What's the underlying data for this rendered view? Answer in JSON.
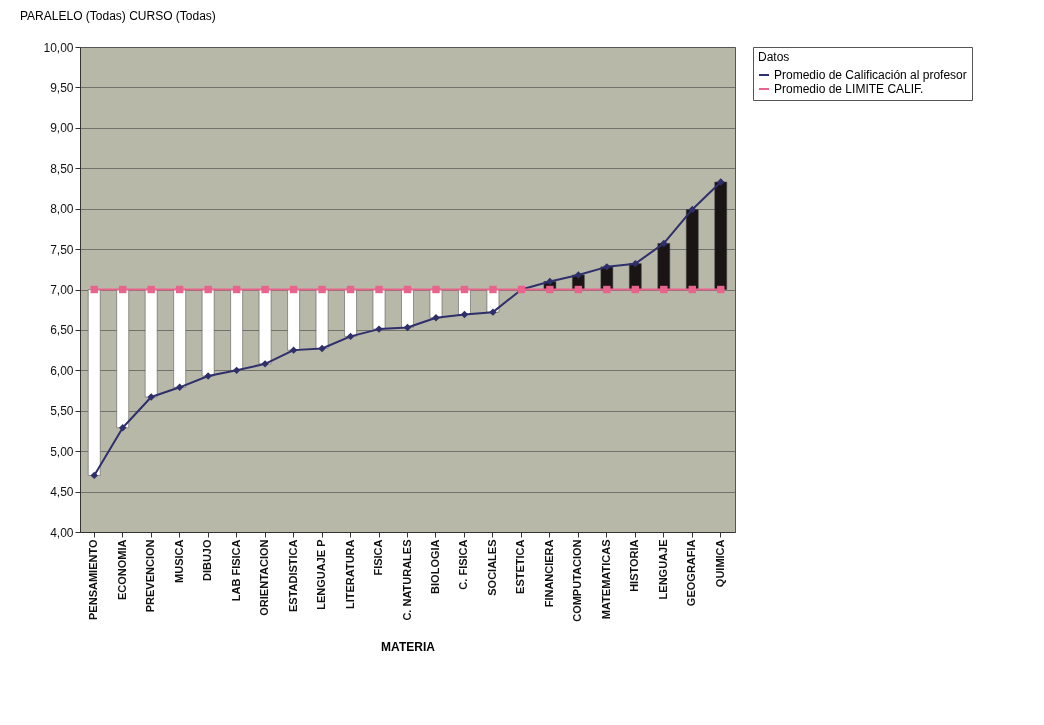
{
  "chart_data": {
    "type": "line",
    "annotations": [
      "PARALELO (Todas) CURSO (Todas)"
    ],
    "xlabel": "MATERIA",
    "legend_title": "Datos",
    "legend": "right",
    "grid": "y",
    "categories": [
      "PENSAMIENTO",
      "ECONOMIA",
      "PREVENCION",
      "MUSICA",
      "DIBUJO",
      "LAB FISICA",
      "ORIENTACION",
      "ESTADISTICA",
      "LENGUAJE P",
      "LITERATURA",
      "FISICA",
      "C. NATURALES",
      "BIOLOGIA",
      "C. FISICA",
      "SOCIALES",
      "ESTETICA",
      "FINANCIERA",
      "COMPUTACION",
      "MATEMATICAS",
      "HISTORIA",
      "LENGUAJE",
      "GEOGRAFIA",
      "QUIMICA"
    ],
    "ylim": [
      4,
      10
    ],
    "yticks": [
      {
        "value": 4,
        "label": "4,00"
      },
      {
        "value": 4.5,
        "label": "4,50"
      },
      {
        "value": 5,
        "label": "5,00"
      },
      {
        "value": 5.5,
        "label": "5,50"
      },
      {
        "value": 6,
        "label": "6,00"
      },
      {
        "value": 6.5,
        "label": "6,50"
      },
      {
        "value": 7,
        "label": "7,00"
      },
      {
        "value": 7.5,
        "label": "7,50"
      },
      {
        "value": 8,
        "label": "8,00"
      },
      {
        "value": 8.5,
        "label": "8,50"
      },
      {
        "value": 9,
        "label": "9,00"
      },
      {
        "value": 9.5,
        "label": "9,50"
      },
      {
        "value": 10,
        "label": "10,00"
      }
    ],
    "series": [
      {
        "type": "bar",
        "base": [
          7,
          7,
          7,
          7,
          7,
          7,
          7,
          7,
          7,
          7,
          7,
          7,
          7,
          7,
          7,
          null,
          7,
          7,
          7,
          7,
          7,
          7,
          7
        ],
        "values": [
          -2.3,
          -1.71,
          -1.33,
          -1.21,
          -1.07,
          -1.0,
          -0.92,
          -0.75,
          -0.73,
          -0.58,
          -0.49,
          -0.47,
          -0.35,
          -0.31,
          -0.28,
          null,
          0.1,
          0.18,
          0.28,
          0.32,
          0.57,
          0.99,
          1.33
        ],
        "colors": [
          "#ffffff",
          "#ffffff",
          "#ffffff",
          "#ffffff",
          "#ffffff",
          "#ffffff",
          "#ffffff",
          "#ffffff",
          "#ffffff",
          "#ffffff",
          "#ffffff",
          "#ffffff",
          "#ffffff",
          "#ffffff",
          "#ffffff",
          null,
          "#1a1414",
          "#1a1414",
          "#1a1414",
          "#1a1414",
          "#1a1414",
          "#1a1414",
          "#1a1414"
        ]
      },
      {
        "name": "Promedio de Calificación al profesor",
        "color": "#2e2f6b",
        "marker": "diamond",
        "values": [
          4.7,
          5.29,
          5.67,
          5.79,
          5.93,
          6.0,
          6.08,
          6.25,
          6.27,
          6.42,
          6.51,
          6.53,
          6.65,
          6.69,
          6.72,
          7.0,
          7.1,
          7.18,
          7.28,
          7.32,
          7.57,
          7.99,
          8.33
        ]
      },
      {
        "name": "Promedio de LIMITE CALIF.",
        "color": "#e8648c",
        "marker": "square",
        "values": [
          7,
          7,
          7,
          7,
          7,
          7,
          7,
          7,
          7,
          7,
          7,
          7,
          7,
          7,
          7,
          7,
          7,
          7,
          7,
          7,
          7,
          7,
          7
        ]
      }
    ]
  }
}
